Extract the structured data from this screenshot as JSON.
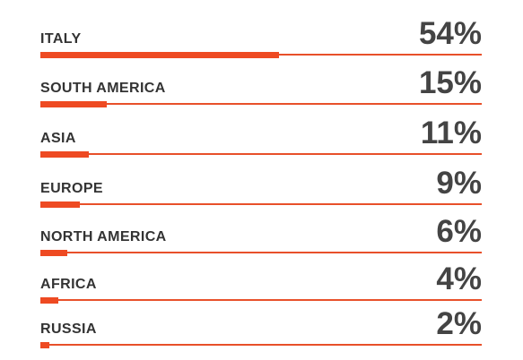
{
  "colors": {
    "accent": "#ee4a22",
    "track": "#e8502a",
    "label": "#333333",
    "value": "#444444"
  },
  "chart_data": {
    "type": "bar",
    "orientation": "horizontal",
    "categories": [
      "ITALY",
      "SOUTH AMERICA",
      "ASIA",
      "EUROPE",
      "NORTH AMERICA",
      "AFRICA",
      "RUSSIA"
    ],
    "values": [
      54,
      15,
      11,
      9,
      6,
      4,
      2
    ],
    "value_labels": [
      "54%",
      "15%",
      "11%",
      "9%",
      "6%",
      "4%",
      "2%"
    ],
    "xlim": [
      0,
      100
    ],
    "unit": "%",
    "grid": false,
    "legend": "none"
  }
}
